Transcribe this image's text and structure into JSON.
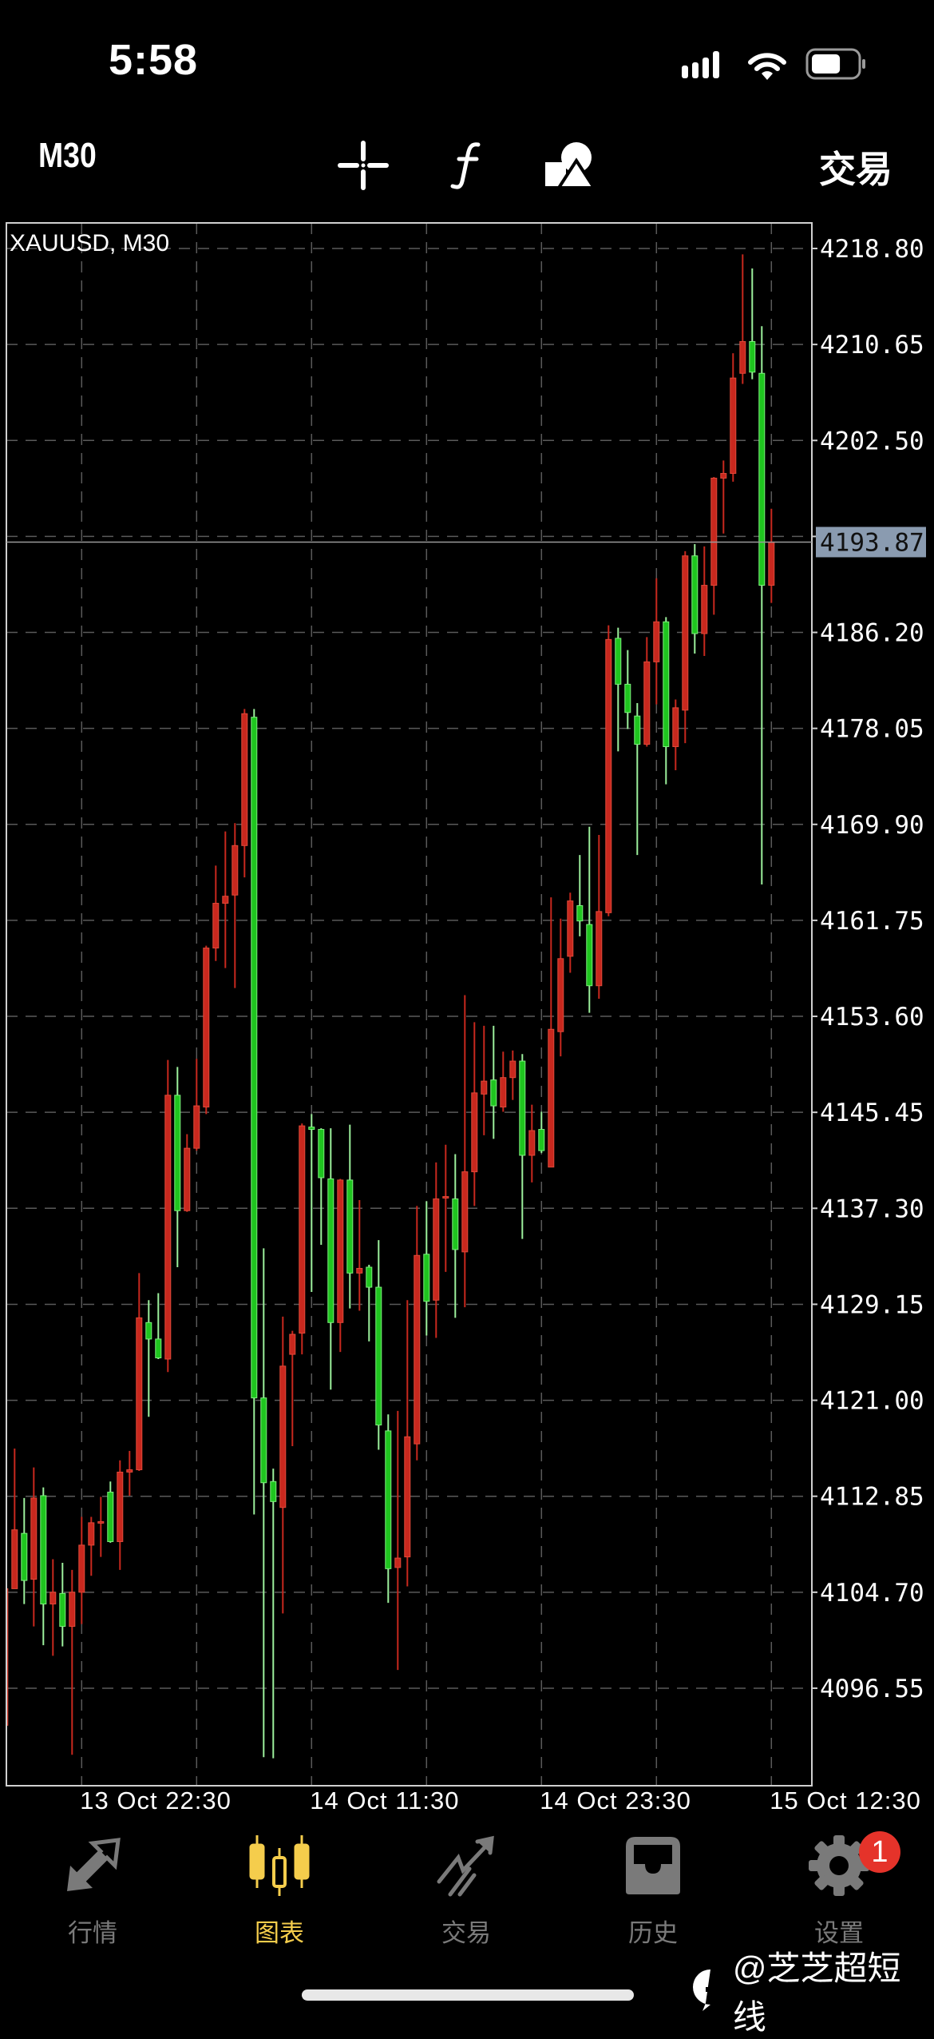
{
  "status_bar": {
    "time": "5:58",
    "battery_level": 0.65
  },
  "toolbar": {
    "timeframe": "M30",
    "icons": [
      "crosshair-icon",
      "indicator-f-icon",
      "objects-shapes-icon"
    ],
    "trade_label": "交易"
  },
  "colors": {
    "up": "#c8281e",
    "down": "#1fc51f",
    "active_tab": "#f5cd4c",
    "inactive_tab": "#7a7a7a",
    "price_tag_bg": "#8a9bb0",
    "badge": "#e5332a"
  },
  "chart_data": {
    "type": "candlestick",
    "title": "XAUUSD, M30",
    "symbol": "XAUUSD",
    "timeframe": "M30",
    "up_color": "red",
    "down_color": "green",
    "grid": true,
    "y_ticks": [
      "4218.80",
      "4210.65",
      "4202.50",
      "4194.35",
      "4186.20",
      "4178.05",
      "4169.90",
      "4161.75",
      "4153.60",
      "4145.45",
      "4137.30",
      "4129.15",
      "4121.00",
      "4112.85",
      "4104.70",
      "4096.55"
    ],
    "y_tick_labels_shown": [
      "4218.80",
      "4210.65",
      "4202.50",
      "4186.20",
      "4178.05",
      "4169.90",
      "4161.75",
      "4153.60",
      "4145.45",
      "4137.30",
      "4129.15",
      "4121.00",
      "4112.85",
      "4104.70",
      "4096.55"
    ],
    "ylim": [
      4087.6,
      4220.2
    ],
    "current_price": "4193.87",
    "x_ticks": [
      {
        "bar": 8,
        "label": "13 Oct 22:30"
      },
      {
        "bar": 32,
        "label": "14 Oct 11:30"
      },
      {
        "bar": 56,
        "label": "14 Oct 23:30"
      },
      {
        "bar": 80,
        "label": "15 Oct 12:30"
      }
    ],
    "ohlc_fields": [
      "open",
      "high",
      "low",
      "close"
    ],
    "bars": [
      [
        4093.4,
        4105.5,
        4093.0,
        4105.0
      ],
      [
        4105.0,
        4116.9,
        4105.0,
        4110.0
      ],
      [
        4109.7,
        4112.7,
        4103.7,
        4105.7
      ],
      [
        4105.8,
        4115.3,
        4101.8,
        4112.7
      ],
      [
        4112.9,
        4113.6,
        4100.2,
        4103.7
      ],
      [
        4103.7,
        4107.5,
        4099.3,
        4104.7
      ],
      [
        4104.6,
        4107.2,
        4100.1,
        4101.8
      ],
      [
        4101.8,
        4106.6,
        4090.9,
        4104.7
      ],
      [
        4104.7,
        4111.1,
        4102.0,
        4108.7
      ],
      [
        4108.7,
        4111.1,
        4106.1,
        4110.6
      ],
      [
        4110.6,
        4112.8,
        4107.7,
        4110.7
      ],
      [
        4113.2,
        4114.1,
        4108.9,
        4109.0
      ],
      [
        4109.0,
        4115.9,
        4106.6,
        4114.9
      ],
      [
        4114.9,
        4116.7,
        4112.9,
        4115.1
      ],
      [
        4115.1,
        4131.8,
        4115.0,
        4128.0
      ],
      [
        4127.6,
        4129.5,
        4119.6,
        4126.2
      ],
      [
        4126.2,
        4130.1,
        4124.5,
        4124.6
      ],
      [
        4124.5,
        4149.9,
        4123.4,
        4146.9
      ],
      [
        4146.9,
        4149.3,
        4132.3,
        4137.1
      ],
      [
        4137.1,
        4143.6,
        4137.0,
        4142.4
      ],
      [
        4142.4,
        4150.0,
        4142.2,
        4146.0
      ],
      [
        4145.9,
        4159.6,
        4145.3,
        4159.4
      ],
      [
        4159.4,
        4166.4,
        4158.3,
        4163.2
      ],
      [
        4163.2,
        4169.3,
        4157.7,
        4163.8
      ],
      [
        4163.9,
        4170.0,
        4156.0,
        4168.1
      ],
      [
        4168.1,
        4179.7,
        4165.4,
        4179.3
      ],
      [
        4179.0,
        4179.7,
        4111.3,
        4121.2
      ],
      [
        4121.2,
        4133.9,
        4090.7,
        4114.0
      ],
      [
        4114.1,
        4115.2,
        4090.6,
        4112.4
      ],
      [
        4111.9,
        4128.1,
        4102.9,
        4123.9
      ],
      [
        4124.9,
        4126.9,
        4117.1,
        4126.6
      ],
      [
        4126.7,
        4144.5,
        4124.9,
        4144.3
      ],
      [
        4144.2,
        4145.3,
        4130.2,
        4144.0
      ],
      [
        4144.0,
        4144.1,
        4134.2,
        4139.9
      ],
      [
        4139.8,
        4144.1,
        4121.9,
        4127.6
      ],
      [
        4127.6,
        4139.8,
        4125.1,
        4139.7
      ],
      [
        4139.7,
        4144.4,
        4128.8,
        4131.8
      ],
      [
        4131.8,
        4138.0,
        4128.6,
        4132.2
      ],
      [
        4132.3,
        4132.5,
        4126.0,
        4130.6
      ],
      [
        4130.6,
        4134.6,
        4116.8,
        4118.9
      ],
      [
        4118.4,
        4119.8,
        4103.8,
        4106.7
      ],
      [
        4106.8,
        4120.1,
        4098.1,
        4107.6
      ],
      [
        4107.7,
        4129.5,
        4105.2,
        4117.9
      ],
      [
        4117.3,
        4137.5,
        4115.9,
        4133.3
      ],
      [
        4133.4,
        4137.9,
        4126.5,
        4129.4
      ],
      [
        4129.5,
        4141.2,
        4126.3,
        4138.1
      ],
      [
        4138.2,
        4142.7,
        4131.9,
        4138.3
      ],
      [
        4138.1,
        4141.9,
        4128.0,
        4133.8
      ],
      [
        4133.6,
        4155.4,
        4128.9,
        4140.4
      ],
      [
        4140.4,
        4153.1,
        4137.5,
        4147.1
      ],
      [
        4147.0,
        4152.8,
        4143.5,
        4148.1
      ],
      [
        4148.2,
        4152.8,
        4143.2,
        4146.0
      ],
      [
        4145.9,
        4150.6,
        4145.5,
        4148.4
      ],
      [
        4148.4,
        4150.7,
        4146.5,
        4149.8
      ],
      [
        4149.8,
        4150.4,
        4134.7,
        4141.8
      ],
      [
        4141.8,
        4146.1,
        4139.5,
        4143.9
      ],
      [
        4144.0,
        4145.5,
        4142.0,
        4142.2
      ],
      [
        4140.8,
        4163.7,
        4140.8,
        4152.5
      ],
      [
        4152.3,
        4161.9,
        4150.2,
        4158.5
      ],
      [
        4158.7,
        4164.1,
        4157.3,
        4163.4
      ],
      [
        4163.0,
        4167.3,
        4160.4,
        4161.7
      ],
      [
        4161.4,
        4169.7,
        4153.9,
        4156.2
      ],
      [
        4156.2,
        4169.0,
        4155.1,
        4162.5
      ],
      [
        4162.4,
        4186.8,
        4162.1,
        4185.6
      ],
      [
        4185.7,
        4186.6,
        4176.1,
        4181.8
      ],
      [
        4181.8,
        4184.7,
        4178.0,
        4179.4
      ],
      [
        4179.1,
        4180.2,
        4167.3,
        4176.7
      ],
      [
        4176.7,
        4185.8,
        4176.5,
        4183.7
      ],
      [
        4183.7,
        4190.8,
        4180.1,
        4187.1
      ],
      [
        4187.1,
        4187.5,
        4173.3,
        4176.5
      ],
      [
        4176.5,
        4180.5,
        4174.5,
        4179.8
      ],
      [
        4179.6,
        4193.1,
        4176.8,
        4192.7
      ],
      [
        4192.7,
        4193.7,
        4184.4,
        4186.1
      ],
      [
        4186.1,
        4193.5,
        4184.2,
        4190.2
      ],
      [
        4190.2,
        4199.4,
        4187.7,
        4199.3
      ],
      [
        4199.3,
        4200.8,
        4194.6,
        4199.7
      ],
      [
        4199.7,
        4209.9,
        4199.0,
        4207.8
      ],
      [
        4208.2,
        4218.3,
        4207.3,
        4210.9
      ],
      [
        4210.9,
        4217.1,
        4207.7,
        4208.3
      ],
      [
        4208.2,
        4212.2,
        4164.8,
        4190.2
      ],
      [
        4190.2,
        4196.7,
        4188.7,
        4193.87
      ]
    ]
  },
  "bottom_nav": {
    "items": [
      {
        "label": "行情",
        "icon": "quotes-arrows-icon",
        "active": false
      },
      {
        "label": "图表",
        "icon": "candlestick-chart-icon",
        "active": true
      },
      {
        "label": "交易",
        "icon": "trade-trend-icon",
        "active": false
      },
      {
        "label": "历史",
        "icon": "history-inbox-icon",
        "active": false
      },
      {
        "label": "设置",
        "icon": "settings-gear-icon",
        "active": false
      }
    ],
    "settings_badge": "1"
  },
  "watermark": {
    "text": "@芝芝超短线",
    "icon": "facebook-icon"
  }
}
